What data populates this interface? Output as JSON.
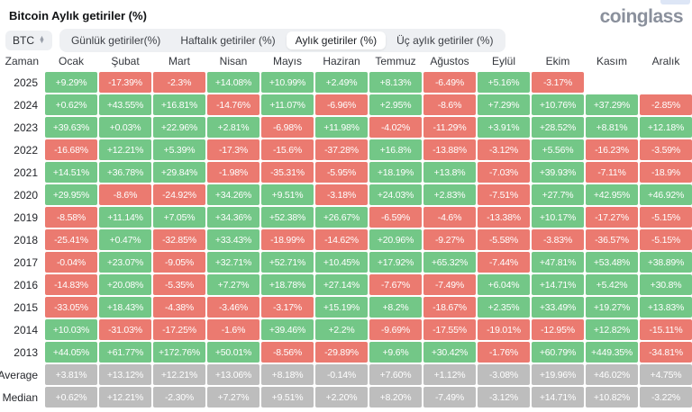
{
  "header": {
    "title": "Bitcoin Aylık getiriler (%)",
    "logo": "coinglass"
  },
  "controls": {
    "coin_selector": "BTC",
    "tabs": [
      "Günlük getiriler(%)",
      "Haftalık getiriler (%)",
      "Aylık getiriler (%)",
      "Üç aylık getiriler (%)"
    ],
    "active_tab": "Aylık getiriler (%)",
    "active_tab_index": 2
  },
  "colors": {
    "positive": "#73c787",
    "negative": "#eb7a70",
    "neutral": "#bdbdbd"
  },
  "chart_data": {
    "type": "heatmap",
    "title": "Bitcoin Aylık getiriler (%)",
    "columns": [
      "Zaman",
      "Ocak",
      "Şubat",
      "Mart",
      "Nisan",
      "Mayıs",
      "Haziran",
      "Temmuz",
      "Ağustos",
      "Eylül",
      "Ekim",
      "Kasım",
      "Aralık"
    ],
    "rows": [
      {
        "label": "2025",
        "neutral": false,
        "values": [
          "+9.29%",
          "-17.39%",
          "-2.3%",
          "+14.08%",
          "+10.99%",
          "+2.49%",
          "+8.13%",
          "-6.49%",
          "+5.16%",
          "-3.17%",
          null,
          null
        ]
      },
      {
        "label": "2024",
        "neutral": false,
        "values": [
          "+0.62%",
          "+43.55%",
          "+16.81%",
          "-14.76%",
          "+11.07%",
          "-6.96%",
          "+2.95%",
          "-8.6%",
          "+7.29%",
          "+10.76%",
          "+37.29%",
          "-2.85%"
        ]
      },
      {
        "label": "2023",
        "neutral": false,
        "values": [
          "+39.63%",
          "+0.03%",
          "+22.96%",
          "+2.81%",
          "-6.98%",
          "+11.98%",
          "-4.02%",
          "-11.29%",
          "+3.91%",
          "+28.52%",
          "+8.81%",
          "+12.18%"
        ]
      },
      {
        "label": "2022",
        "neutral": false,
        "values": [
          "-16.68%",
          "+12.21%",
          "+5.39%",
          "-17.3%",
          "-15.6%",
          "-37.28%",
          "+16.8%",
          "-13.88%",
          "-3.12%",
          "+5.56%",
          "-16.23%",
          "-3.59%"
        ]
      },
      {
        "label": "2021",
        "neutral": false,
        "values": [
          "+14.51%",
          "+36.78%",
          "+29.84%",
          "-1.98%",
          "-35.31%",
          "-5.95%",
          "+18.19%",
          "+13.8%",
          "-7.03%",
          "+39.93%",
          "-7.11%",
          "-18.9%"
        ]
      },
      {
        "label": "2020",
        "neutral": false,
        "values": [
          "+29.95%",
          "-8.6%",
          "-24.92%",
          "+34.26%",
          "+9.51%",
          "-3.18%",
          "+24.03%",
          "+2.83%",
          "-7.51%",
          "+27.7%",
          "+42.95%",
          "+46.92%"
        ]
      },
      {
        "label": "2019",
        "neutral": false,
        "values": [
          "-8.58%",
          "+11.14%",
          "+7.05%",
          "+34.36%",
          "+52.38%",
          "+26.67%",
          "-6.59%",
          "-4.6%",
          "-13.38%",
          "+10.17%",
          "-17.27%",
          "-5.15%"
        ]
      },
      {
        "label": "2018",
        "neutral": false,
        "values": [
          "-25.41%",
          "+0.47%",
          "-32.85%",
          "+33.43%",
          "-18.99%",
          "-14.62%",
          "+20.96%",
          "-9.27%",
          "-5.58%",
          "-3.83%",
          "-36.57%",
          "-5.15%"
        ]
      },
      {
        "label": "2017",
        "neutral": false,
        "values": [
          "-0.04%",
          "+23.07%",
          "-9.05%",
          "+32.71%",
          "+52.71%",
          "+10.45%",
          "+17.92%",
          "+65.32%",
          "-7.44%",
          "+47.81%",
          "+53.48%",
          "+38.89%"
        ]
      },
      {
        "label": "2016",
        "neutral": false,
        "values": [
          "-14.83%",
          "+20.08%",
          "-5.35%",
          "+7.27%",
          "+18.78%",
          "+27.14%",
          "-7.67%",
          "-7.49%",
          "+6.04%",
          "+14.71%",
          "+5.42%",
          "+30.8%"
        ]
      },
      {
        "label": "2015",
        "neutral": false,
        "values": [
          "-33.05%",
          "+18.43%",
          "-4.38%",
          "-3.46%",
          "-3.17%",
          "+15.19%",
          "+8.2%",
          "-18.67%",
          "+2.35%",
          "+33.49%",
          "+19.27%",
          "+13.83%"
        ]
      },
      {
        "label": "2014",
        "neutral": false,
        "values": [
          "+10.03%",
          "-31.03%",
          "-17.25%",
          "-1.6%",
          "+39.46%",
          "+2.2%",
          "-9.69%",
          "-17.55%",
          "-19.01%",
          "-12.95%",
          "+12.82%",
          "-15.11%"
        ]
      },
      {
        "label": "2013",
        "neutral": false,
        "values": [
          "+44.05%",
          "+61.77%",
          "+172.76%",
          "+50.01%",
          "-8.56%",
          "-29.89%",
          "+9.6%",
          "+30.42%",
          "-1.76%",
          "+60.79%",
          "+449.35%",
          "-34.81%"
        ]
      },
      {
        "label": "Average",
        "neutral": true,
        "values": [
          "+3.81%",
          "+13.12%",
          "+12.21%",
          "+13.06%",
          "+8.18%",
          "-0.14%",
          "+7.60%",
          "+1.12%",
          "-3.08%",
          "+19.96%",
          "+46.02%",
          "+4.75%"
        ]
      },
      {
        "label": "Median",
        "neutral": true,
        "values": [
          "+0.62%",
          "+12.21%",
          "-2.30%",
          "+7.27%",
          "+9.51%",
          "+2.20%",
          "+8.20%",
          "-7.49%",
          "-3.12%",
          "+14.71%",
          "+10.82%",
          "-3.22%"
        ]
      }
    ]
  }
}
